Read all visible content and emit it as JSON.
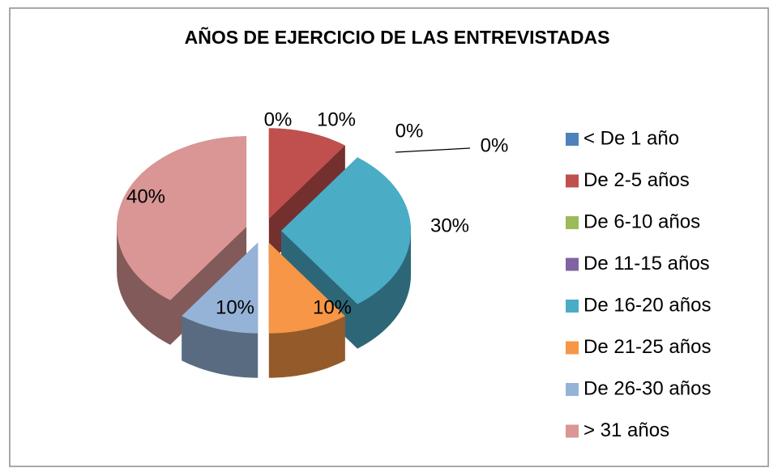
{
  "chart_data": {
    "type": "pie3d",
    "title": "AÑOS DE EJERCICIO DE LAS ENTREVISTADAS",
    "categories": [
      "< De 1 año",
      "De 2-5 años",
      "De 6-10 años",
      "De 11-15 años",
      "De 16-20 años",
      "De 21-25 años",
      "De 26-30 años",
      "> 31 años"
    ],
    "values": [
      0,
      10,
      0,
      0,
      30,
      10,
      10,
      40
    ],
    "value_labels": [
      "0%",
      "10%",
      "0%",
      "0%",
      "30%",
      "10%",
      "10%",
      "40%"
    ],
    "colors": [
      "#4f81bd",
      "#c0504d",
      "#9bbb59",
      "#8064a2",
      "#4bacc6",
      "#f79646",
      "#95b3d7",
      "#d99694"
    ],
    "legend": "right"
  }
}
